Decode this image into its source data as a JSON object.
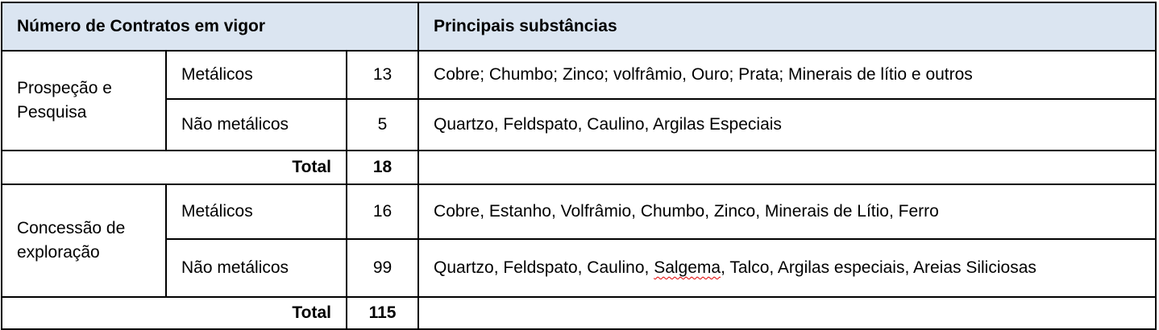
{
  "header": {
    "col_contracts": "Número de Contratos em vigor",
    "col_substances": "Principais substâncias"
  },
  "groups": [
    {
      "label": "Prospeção e Pesquisa",
      "rows": [
        {
          "type": "Metálicos",
          "count": "13",
          "substances": "Cobre; Chumbo; Zinco; volfrâmio, Ouro; Prata; Minerais de lítio e outros"
        },
        {
          "type": "Não metálicos",
          "count": "5",
          "substances": "Quartzo, Feldspato, Caulino, Argilas Especiais"
        }
      ],
      "total_label": "Total",
      "total": "18"
    },
    {
      "label": "Concessão de exploração",
      "rows": [
        {
          "type": "Metálicos",
          "count": "16",
          "substances": "Cobre, Estanho, Volfrâmio, Chumbo, Zinco, Minerais de Lítio, Ferro"
        },
        {
          "type": "Não metálicos",
          "count": "99",
          "substances_pre": "Quartzo, Feldspato, Caulino, ",
          "substances_flagged": "Salgema",
          "substances_post": ", Talco, Argilas especiais, Areias Siliciosas"
        }
      ],
      "total_label": "Total",
      "total": "115"
    }
  ],
  "colors": {
    "header_bg": "#dbe5f1",
    "border": "#000000",
    "spellcheck": "#e00000"
  }
}
